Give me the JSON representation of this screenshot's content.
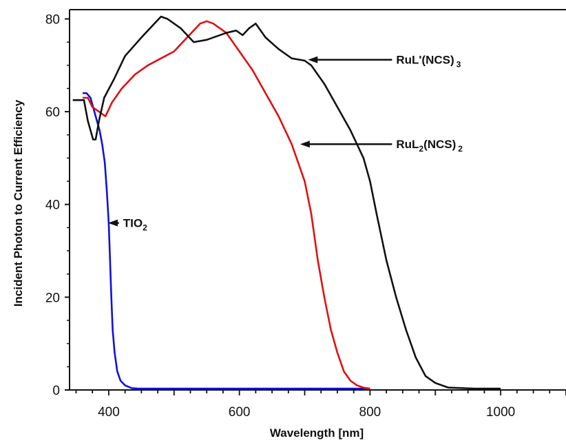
{
  "chart_data": {
    "type": "line",
    "title": "",
    "xlabel": "Wavelength [nm]",
    "ylabel": "Incident Photon to Current Efficiency",
    "xlim": [
      340,
      1100
    ],
    "ylim": [
      0,
      82
    ],
    "xticks": [
      400,
      600,
      800,
      1000
    ],
    "yticks": [
      0,
      20,
      40,
      60,
      80
    ],
    "grid": false,
    "series": [
      {
        "color": "#1010e0",
        "points": [
          [
            360,
            64
          ],
          [
            366,
            64
          ],
          [
            372,
            63
          ],
          [
            378,
            60
          ],
          [
            382,
            58
          ],
          [
            386,
            56
          ],
          [
            390,
            53
          ],
          [
            394,
            49
          ],
          [
            397,
            43
          ],
          [
            400,
            36
          ],
          [
            402,
            28
          ],
          [
            404,
            20
          ],
          [
            406,
            13
          ],
          [
            409,
            8
          ],
          [
            413,
            4
          ],
          [
            418,
            2
          ],
          [
            425,
            1
          ],
          [
            435,
            0.4
          ],
          [
            445,
            0.3
          ],
          [
            500,
            0.3
          ],
          [
            600,
            0.3
          ],
          [
            700,
            0.3
          ],
          [
            800,
            0.3
          ]
        ]
      },
      {
        "color": "#e01010",
        "points": [
          [
            360,
            63
          ],
          [
            368,
            63
          ],
          [
            375,
            61
          ],
          [
            385,
            60
          ],
          [
            395,
            59
          ],
          [
            405,
            62
          ],
          [
            420,
            65
          ],
          [
            440,
            68
          ],
          [
            460,
            70
          ],
          [
            480,
            71.5
          ],
          [
            500,
            73
          ],
          [
            520,
            76
          ],
          [
            540,
            79
          ],
          [
            550,
            79.5
          ],
          [
            560,
            79
          ],
          [
            580,
            77
          ],
          [
            600,
            73
          ],
          [
            620,
            69
          ],
          [
            640,
            64
          ],
          [
            660,
            59
          ],
          [
            680,
            53
          ],
          [
            700,
            45
          ],
          [
            710,
            38
          ],
          [
            720,
            28
          ],
          [
            730,
            20
          ],
          [
            740,
            13
          ],
          [
            750,
            8
          ],
          [
            760,
            4
          ],
          [
            770,
            2
          ],
          [
            780,
            1
          ],
          [
            790,
            0.5
          ],
          [
            800,
            0.3
          ]
        ]
      },
      {
        "color": "#111111",
        "points": [
          [
            345,
            62.5
          ],
          [
            362,
            62.5
          ],
          [
            368,
            58
          ],
          [
            372,
            56
          ],
          [
            376,
            54
          ],
          [
            380,
            54
          ],
          [
            385,
            58
          ],
          [
            393,
            63
          ],
          [
            408,
            67
          ],
          [
            425,
            72
          ],
          [
            450,
            76
          ],
          [
            470,
            79
          ],
          [
            480,
            80.5
          ],
          [
            490,
            80
          ],
          [
            510,
            78
          ],
          [
            530,
            75
          ],
          [
            550,
            75.5
          ],
          [
            580,
            77
          ],
          [
            595,
            77.5
          ],
          [
            605,
            76.5
          ],
          [
            615,
            78
          ],
          [
            625,
            79
          ],
          [
            640,
            76
          ],
          [
            660,
            73.5
          ],
          [
            680,
            71.5
          ],
          [
            700,
            71
          ],
          [
            710,
            70
          ],
          [
            730,
            66
          ],
          [
            750,
            61
          ],
          [
            770,
            56
          ],
          [
            790,
            50
          ],
          [
            800,
            45
          ],
          [
            810,
            38
          ],
          [
            825,
            28
          ],
          [
            840,
            20
          ],
          [
            855,
            13
          ],
          [
            870,
            7
          ],
          [
            885,
            3
          ],
          [
            900,
            1.5
          ],
          [
            920,
            0.5
          ],
          [
            960,
            0.3
          ],
          [
            1000,
            0.3
          ]
        ]
      }
    ],
    "annotations": [
      {
        "text": "TIO",
        "sub": "2",
        "sub_after": "",
        "arrow_to": [
          399,
          36
        ],
        "text_at": [
          422,
          36
        ]
      },
      {
        "text": "RuL",
        "sub": "2",
        "sub_after": "(NCS)",
        "sub2": "2",
        "arrow_to": [
          693,
          53
        ],
        "text_at": [
          840,
          53
        ]
      },
      {
        "text": "RuL'(NCS)",
        "sub": "",
        "sub_after": "",
        "sub2": "3",
        "arrow_to": [
          705,
          71.2
        ],
        "text_at": [
          840,
          71.2
        ]
      }
    ]
  }
}
